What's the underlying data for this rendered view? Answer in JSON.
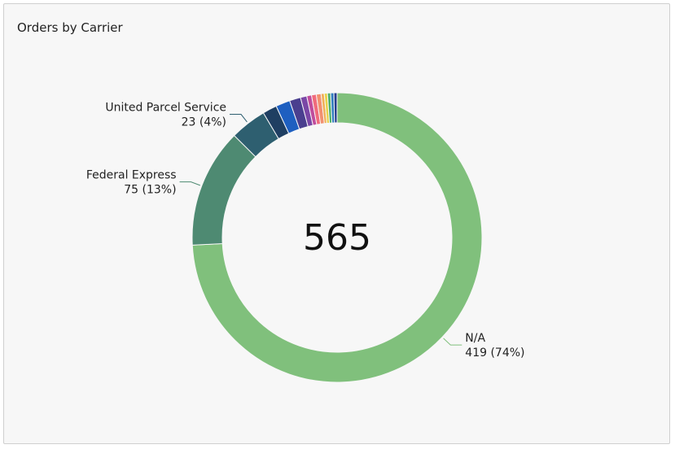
{
  "chart_data": {
    "type": "pie",
    "title": "Orders by Carrier",
    "center_total": "565",
    "series": [
      {
        "name": "N/A",
        "value": 419,
        "color": "#80c07c",
        "label_count": "419 (74%)"
      },
      {
        "name": "Federal Express",
        "value": 75,
        "color": "#4e8a72",
        "label_count": "75 (13%)"
      },
      {
        "name": "United Parcel Service",
        "value": 23,
        "color": "#2e5f70",
        "label_count": "23 (4%)"
      },
      {
        "name": "",
        "value": 9,
        "color": "#1f3f62"
      },
      {
        "name": "",
        "value": 9,
        "color": "#1e5fc0"
      },
      {
        "name": "",
        "value": 7,
        "color": "#4a3f8f"
      },
      {
        "name": "",
        "value": 4,
        "color": "#7a47a6"
      },
      {
        "name": "",
        "value": 3,
        "color": "#c04c9c"
      },
      {
        "name": "",
        "value": 3,
        "color": "#f06b7c"
      },
      {
        "name": "",
        "value": 3,
        "color": "#f29070"
      },
      {
        "name": "",
        "value": 2,
        "color": "#f2ae55"
      },
      {
        "name": "",
        "value": 2,
        "color": "#e7d24a"
      },
      {
        "name": "",
        "value": 2,
        "color": "#4fb06a"
      },
      {
        "name": "",
        "value": 2,
        "color": "#2d7bbd"
      },
      {
        "name": "",
        "value": 2,
        "color": "#263d8c"
      }
    ]
  }
}
